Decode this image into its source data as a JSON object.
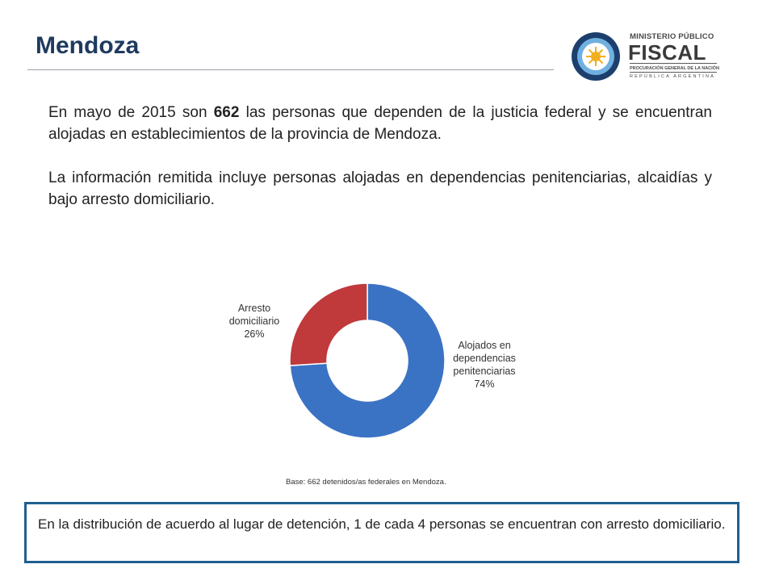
{
  "header": {
    "title": "Mendoza"
  },
  "logo": {
    "ministerio": "MINISTERIO PÚBLICO",
    "fiscal": "FISCAL",
    "line1": "PROCURACIÓN GENERAL DE LA NACIÓN",
    "line2": "REPÚBLICA ARGENTINA"
  },
  "paragraphs": {
    "p1_pre": "En mayo de 2015 son ",
    "p1_bold": "662",
    "p1_post": " las personas que dependen de la justicia federal y se encuentran alojadas en establecimientos de la provincia de Mendoza.",
    "p2": "La información remitida incluye personas alojadas en dependencias penitenciarias, alcaidías y bajo arresto domiciliario."
  },
  "chart_data": {
    "type": "pie",
    "donut": true,
    "slices": [
      {
        "label": "Alojados en dependencias penitenciarias",
        "value": 74,
        "display": "74%",
        "color": "#3b73c4"
      },
      {
        "label": "Arresto domiciliario",
        "value": 26,
        "display": "26%",
        "color": "#c0393b"
      }
    ],
    "labels_text": {
      "arresto_l1": "Arresto",
      "arresto_l2": "domiciliario",
      "arresto_pct": "26%",
      "alojados_l1": "Alojados en",
      "alojados_l2": "dependencias",
      "alojados_l3": "penitenciarias",
      "alojados_pct": "74%"
    }
  },
  "footnote": "Base: 662 detenidos/as federales en Mendoza.",
  "note": "En la distribución de acuerdo al lugar de detención, 1 de cada 4 personas se encuentran con arresto domiciliario.",
  "colors": {
    "title": "#1f3a5f",
    "border": "#1f5f8f"
  }
}
